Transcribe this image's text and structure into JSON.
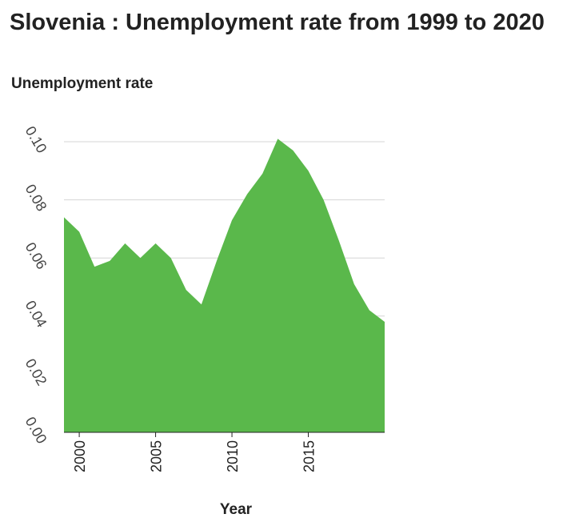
{
  "chart_data": {
    "type": "area",
    "title": "Slovenia : Unemployment rate from 1999 to 2020",
    "xlabel": "Year",
    "ylabel": "Unemployment rate",
    "xlim": [
      1999,
      2020
    ],
    "ylim": [
      0,
      0.1
    ],
    "x_ticks": [
      2000,
      2005,
      2010,
      2015
    ],
    "x_tick_labels": [
      "2000",
      "2005",
      "2010",
      "2015"
    ],
    "y_ticks": [
      0,
      0.02,
      0.04,
      0.06,
      0.08,
      0.1
    ],
    "y_tick_labels": [
      "0.00",
      "0.02",
      "0.04",
      "0.06",
      "0.08",
      "0.10"
    ],
    "grid": "horizontal",
    "color": "#5ab84b",
    "series": [
      {
        "x": [
          1999,
          2000,
          2001,
          2002,
          2003,
          2004,
          2005,
          2006,
          2007,
          2008,
          2009,
          2010,
          2011,
          2012,
          2013,
          2014,
          2015,
          2016,
          2017,
          2018,
          2019,
          2020
        ],
        "values": [
          0.074,
          0.069,
          0.057,
          0.059,
          0.065,
          0.06,
          0.065,
          0.06,
          0.049,
          0.044,
          0.059,
          0.073,
          0.082,
          0.089,
          0.101,
          0.097,
          0.09,
          0.08,
          0.066,
          0.051,
          0.042,
          0.038
        ]
      }
    ]
  }
}
